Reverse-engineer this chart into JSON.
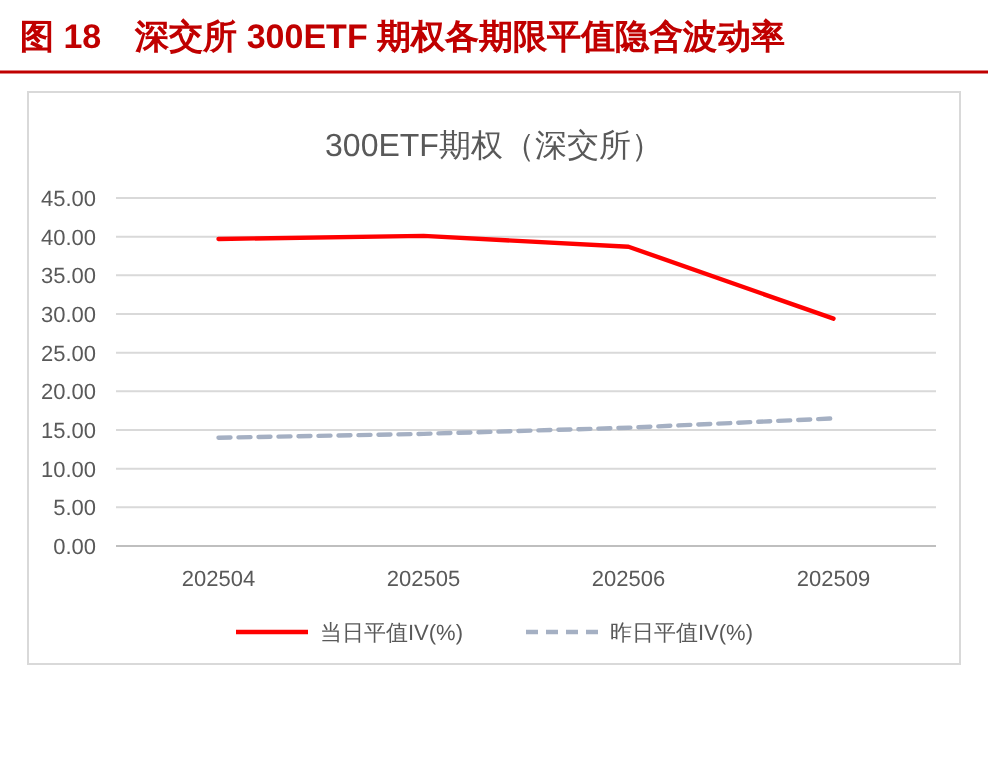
{
  "chart_data": {
    "type": "line",
    "title": "图 18　深交所 300ETF 期权各期限平值隐含波动率",
    "subtitle": "300ETF期权（深交所）",
    "categories": [
      "202504",
      "202505",
      "202506",
      "202509"
    ],
    "series": [
      {
        "name": "当日平值IV(%)",
        "color": "#ff0000",
        "values": [
          39.7,
          40.1,
          38.7,
          29.4
        ],
        "line_style": "solid"
      },
      {
        "name": "昨日平值IV(%)",
        "color": "#a5b0c3",
        "values": [
          14.0,
          14.5,
          15.3,
          16.5
        ],
        "line_style": "dashed"
      }
    ],
    "ylim": [
      0,
      45
    ],
    "yticks": [
      {
        "value": 0,
        "label": "0.00"
      },
      {
        "value": 5,
        "label": "5.00"
      },
      {
        "value": 10,
        "label": "10.00"
      },
      {
        "value": 15,
        "label": "15.00"
      },
      {
        "value": 20,
        "label": "20.00"
      },
      {
        "value": 25,
        "label": "25.00"
      },
      {
        "value": 30,
        "label": "30.00"
      },
      {
        "value": 35,
        "label": "35.00"
      },
      {
        "value": 40,
        "label": "40.00"
      },
      {
        "value": 45,
        "label": "45.00"
      }
    ],
    "grid": "y",
    "legend": "bottom",
    "marker": "none"
  }
}
